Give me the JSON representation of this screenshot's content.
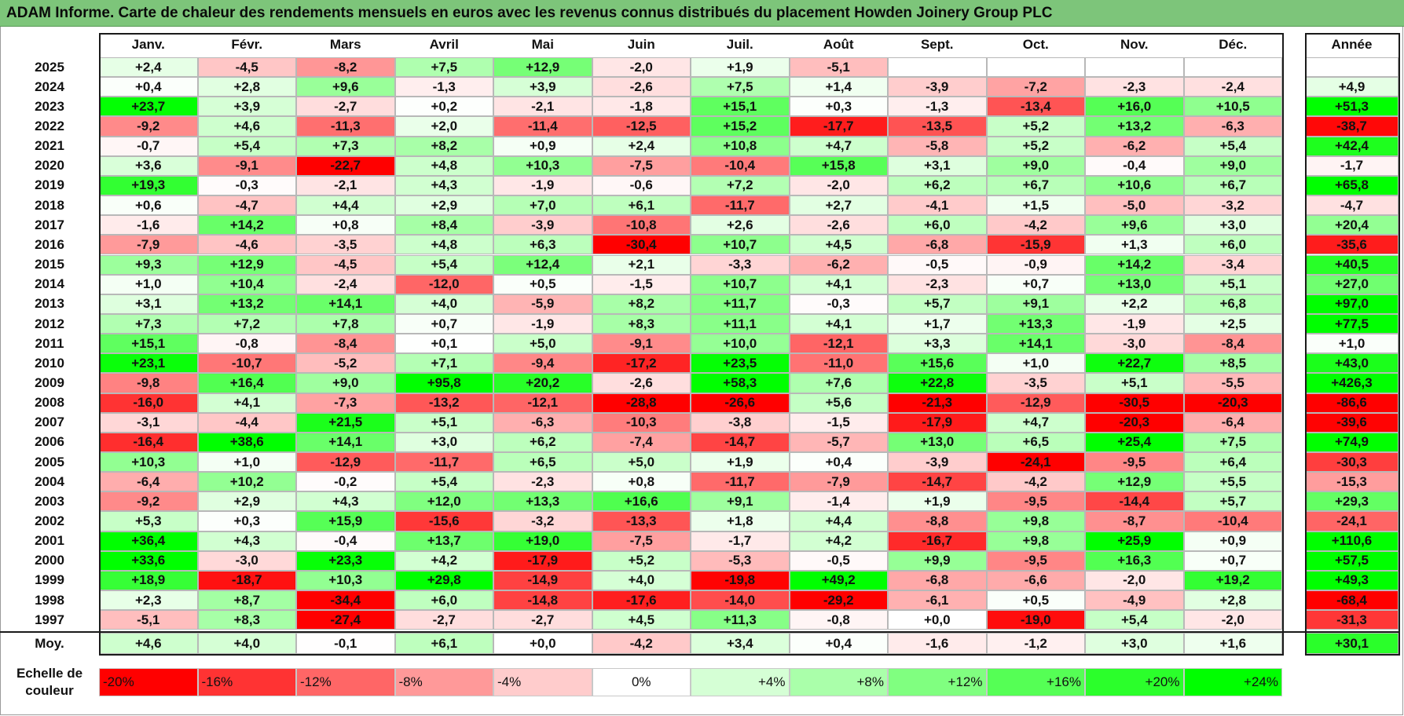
{
  "title": "ADAM Informe. Carte de chaleur des rendements mensuels en euros avec les revenus connus distribués du placement Howden Joinery Group PLC",
  "chart_data": {
    "type": "heatmap",
    "title": "ADAM Informe. Carte de chaleur des rendements mensuels en euros avec les revenus connus distribués du placement Howden Joinery Group PLC",
    "months": [
      "Janv.",
      "Févr.",
      "Mars",
      "Avril",
      "Mai",
      "Juin",
      "Juil.",
      "Août",
      "Sept.",
      "Oct.",
      "Nov.",
      "Déc."
    ],
    "annual_header": "Année",
    "rows": [
      {
        "year": "2025",
        "values": [
          "+2,4",
          "-4,5",
          "-8,2",
          "+7,5",
          "+12,9",
          "-2,0",
          "+1,9",
          "-5,1",
          "",
          "",
          "",
          ""
        ],
        "annual": ""
      },
      {
        "year": "2024",
        "values": [
          "+0,4",
          "+2,8",
          "+9,6",
          "-1,3",
          "+3,9",
          "-2,6",
          "+7,5",
          "+1,4",
          "-3,9",
          "-7,2",
          "-2,3",
          "-2,4"
        ],
        "annual": "+4,9"
      },
      {
        "year": "2023",
        "values": [
          "+23,7",
          "+3,9",
          "-2,7",
          "+0,2",
          "-2,1",
          "-1,8",
          "+15,1",
          "+0,3",
          "-1,3",
          "-13,4",
          "+16,0",
          "+10,5"
        ],
        "annual": "+51,3"
      },
      {
        "year": "2022",
        "values": [
          "-9,2",
          "+4,6",
          "-11,3",
          "+2,0",
          "-11,4",
          "-12,5",
          "+15,2",
          "-17,7",
          "-13,5",
          "+5,2",
          "+13,2",
          "-6,3"
        ],
        "annual": "-38,7"
      },
      {
        "year": "2021",
        "values": [
          "-0,7",
          "+5,4",
          "+7,3",
          "+8,2",
          "+0,9",
          "+2,4",
          "+10,8",
          "+4,7",
          "-5,8",
          "+5,2",
          "-6,2",
          "+5,4"
        ],
        "annual": "+42,4"
      },
      {
        "year": "2020",
        "values": [
          "+3,6",
          "-9,1",
          "-22,7",
          "+4,8",
          "+10,3",
          "-7,5",
          "-10,4",
          "+15,8",
          "+3,1",
          "+9,0",
          "-0,4",
          "+9,0"
        ],
        "annual": "-1,7"
      },
      {
        "year": "2019",
        "values": [
          "+19,3",
          "-0,3",
          "-2,1",
          "+4,3",
          "-1,9",
          "-0,6",
          "+7,2",
          "-2,0",
          "+6,2",
          "+6,7",
          "+10,6",
          "+6,7"
        ],
        "annual": "+65,8"
      },
      {
        "year": "2018",
        "values": [
          "+0,6",
          "-4,7",
          "+4,4",
          "+2,9",
          "+7,0",
          "+6,1",
          "-11,7",
          "+2,7",
          "-4,1",
          "+1,5",
          "-5,0",
          "-3,2"
        ],
        "annual": "-4,7"
      },
      {
        "year": "2017",
        "values": [
          "-1,6",
          "+14,2",
          "+0,8",
          "+8,4",
          "-3,9",
          "-10,8",
          "+2,6",
          "-2,6",
          "+6,0",
          "-4,2",
          "+9,6",
          "+3,0"
        ],
        "annual": "+20,4"
      },
      {
        "year": "2016",
        "values": [
          "-7,9",
          "-4,6",
          "-3,5",
          "+4,8",
          "+6,3",
          "-30,4",
          "+10,7",
          "+4,5",
          "-6,8",
          "-15,9",
          "+1,3",
          "+6,0"
        ],
        "annual": "-35,6"
      },
      {
        "year": "2015",
        "values": [
          "+9,3",
          "+12,9",
          "-4,5",
          "+5,4",
          "+12,4",
          "+2,1",
          "-3,3",
          "-6,2",
          "-0,5",
          "-0,9",
          "+14,2",
          "-3,4"
        ],
        "annual": "+40,5"
      },
      {
        "year": "2014",
        "values": [
          "+1,0",
          "+10,4",
          "-2,4",
          "-12,0",
          "+0,5",
          "-1,5",
          "+10,7",
          "+4,1",
          "-2,3",
          "+0,7",
          "+13,0",
          "+5,1"
        ],
        "annual": "+27,0"
      },
      {
        "year": "2013",
        "values": [
          "+3,1",
          "+13,2",
          "+14,1",
          "+4,0",
          "-5,9",
          "+8,2",
          "+11,7",
          "-0,3",
          "+5,7",
          "+9,1",
          "+2,2",
          "+6,8"
        ],
        "annual": "+97,0"
      },
      {
        "year": "2012",
        "values": [
          "+7,3",
          "+7,2",
          "+7,8",
          "+0,7",
          "-1,9",
          "+8,3",
          "+11,1",
          "+4,1",
          "+1,7",
          "+13,3",
          "-1,9",
          "+2,5"
        ],
        "annual": "+77,5"
      },
      {
        "year": "2011",
        "values": [
          "+15,1",
          "-0,8",
          "-8,4",
          "+0,1",
          "+5,0",
          "-9,1",
          "+10,0",
          "-12,1",
          "+3,3",
          "+14,1",
          "-3,0",
          "-8,4"
        ],
        "annual": "+1,0"
      },
      {
        "year": "2010",
        "values": [
          "+23,1",
          "-10,7",
          "-5,2",
          "+7,1",
          "-9,4",
          "-17,2",
          "+23,5",
          "-11,0",
          "+15,6",
          "+1,0",
          "+22,7",
          "+8,5"
        ],
        "annual": "+43,0"
      },
      {
        "year": "2009",
        "values": [
          "-9,8",
          "+16,4",
          "+9,0",
          "+95,8",
          "+20,2",
          "-2,6",
          "+58,3",
          "+7,6",
          "+22,8",
          "-3,5",
          "+5,1",
          "-5,5"
        ],
        "annual": "+426,3"
      },
      {
        "year": "2008",
        "values": [
          "-16,0",
          "+4,1",
          "-7,3",
          "-13,2",
          "-12,1",
          "-28,8",
          "-26,6",
          "+5,6",
          "-21,3",
          "-12,9",
          "-30,5",
          "-20,3"
        ],
        "annual": "-86,6"
      },
      {
        "year": "2007",
        "values": [
          "-3,1",
          "-4,4",
          "+21,5",
          "+5,1",
          "-6,3",
          "-10,3",
          "-3,8",
          "-1,5",
          "-17,9",
          "+4,7",
          "-20,3",
          "-6,4"
        ],
        "annual": "-39,6"
      },
      {
        "year": "2006",
        "values": [
          "-16,4",
          "+38,6",
          "+14,1",
          "+3,0",
          "+6,2",
          "-7,4",
          "-14,7",
          "-5,7",
          "+13,0",
          "+6,5",
          "+25,4",
          "+7,5"
        ],
        "annual": "+74,9"
      },
      {
        "year": "2005",
        "values": [
          "+10,3",
          "+1,0",
          "-12,9",
          "-11,7",
          "+6,5",
          "+5,0",
          "+1,9",
          "+0,4",
          "-3,9",
          "-24,1",
          "-9,5",
          "+6,4"
        ],
        "annual": "-30,3"
      },
      {
        "year": "2004",
        "values": [
          "-6,4",
          "+10,2",
          "-0,2",
          "+5,4",
          "-2,3",
          "+0,8",
          "-11,7",
          "-7,9",
          "-14,7",
          "-4,2",
          "+12,9",
          "+5,5"
        ],
        "annual": "-15,3"
      },
      {
        "year": "2003",
        "values": [
          "-9,2",
          "+2,9",
          "+4,3",
          "+12,0",
          "+13,3",
          "+16,6",
          "+9,1",
          "-1,4",
          "+1,9",
          "-9,5",
          "-14,4",
          "+5,7"
        ],
        "annual": "+29,3"
      },
      {
        "year": "2002",
        "values": [
          "+5,3",
          "+0,3",
          "+15,9",
          "-15,6",
          "-3,2",
          "-13,3",
          "+1,8",
          "+4,4",
          "-8,8",
          "+9,8",
          "-8,7",
          "-10,4"
        ],
        "annual": "-24,1"
      },
      {
        "year": "2001",
        "values": [
          "+36,4",
          "+4,3",
          "-0,4",
          "+13,7",
          "+19,0",
          "-7,5",
          "-1,7",
          "+4,2",
          "-16,7",
          "+9,8",
          "+25,9",
          "+0,9"
        ],
        "annual": "+110,6"
      },
      {
        "year": "2000",
        "values": [
          "+33,6",
          "-3,0",
          "+23,3",
          "+4,2",
          "-17,9",
          "+5,2",
          "-5,3",
          "-0,5",
          "+9,9",
          "-9,5",
          "+16,3",
          "+0,7"
        ],
        "annual": "+57,5"
      },
      {
        "year": "1999",
        "values": [
          "+18,9",
          "-18,7",
          "+10,3",
          "+29,8",
          "-14,9",
          "+4,0",
          "-19,8",
          "+49,2",
          "-6,8",
          "-6,6",
          "-2,0",
          "+19,2"
        ],
        "annual": "+49,3"
      },
      {
        "year": "1998",
        "values": [
          "+2,3",
          "+8,7",
          "-34,4",
          "+6,0",
          "-14,8",
          "-17,6",
          "-14,0",
          "-29,2",
          "-6,1",
          "+0,5",
          "-4,9",
          "+2,8"
        ],
        "annual": "-68,4"
      },
      {
        "year": "1997",
        "values": [
          "-5,1",
          "+8,3",
          "-27,4",
          "-2,7",
          "-2,7",
          "+4,5",
          "+11,3",
          "-0,8",
          "+0,0",
          "-19,0",
          "+5,4",
          "-2,0"
        ],
        "annual": "-31,3"
      }
    ],
    "average": {
      "label": "Moy.",
      "values": [
        "+4,6",
        "+4,0",
        "-0,1",
        "+6,1",
        "+0,0",
        "-4,2",
        "+3,4",
        "+0,4",
        "-1,6",
        "-1,2",
        "+3,0",
        "+1,6"
      ],
      "annual": "+30,1"
    },
    "legend": {
      "label": "Echelle de couleur",
      "items": [
        "-20%",
        "-16%",
        "-12%",
        "-8%",
        "-4%",
        "0%",
        "+4%",
        "+8%",
        "+12%",
        "+16%",
        "+20%",
        "+24%"
      ],
      "scale_values": [
        -20,
        -16,
        -12,
        -8,
        -4,
        0,
        4,
        8,
        12,
        16,
        20,
        24
      ]
    },
    "colors": {
      "negative": "#ff0000",
      "zero": "#ffffff",
      "positive": "#00ff00"
    }
  }
}
